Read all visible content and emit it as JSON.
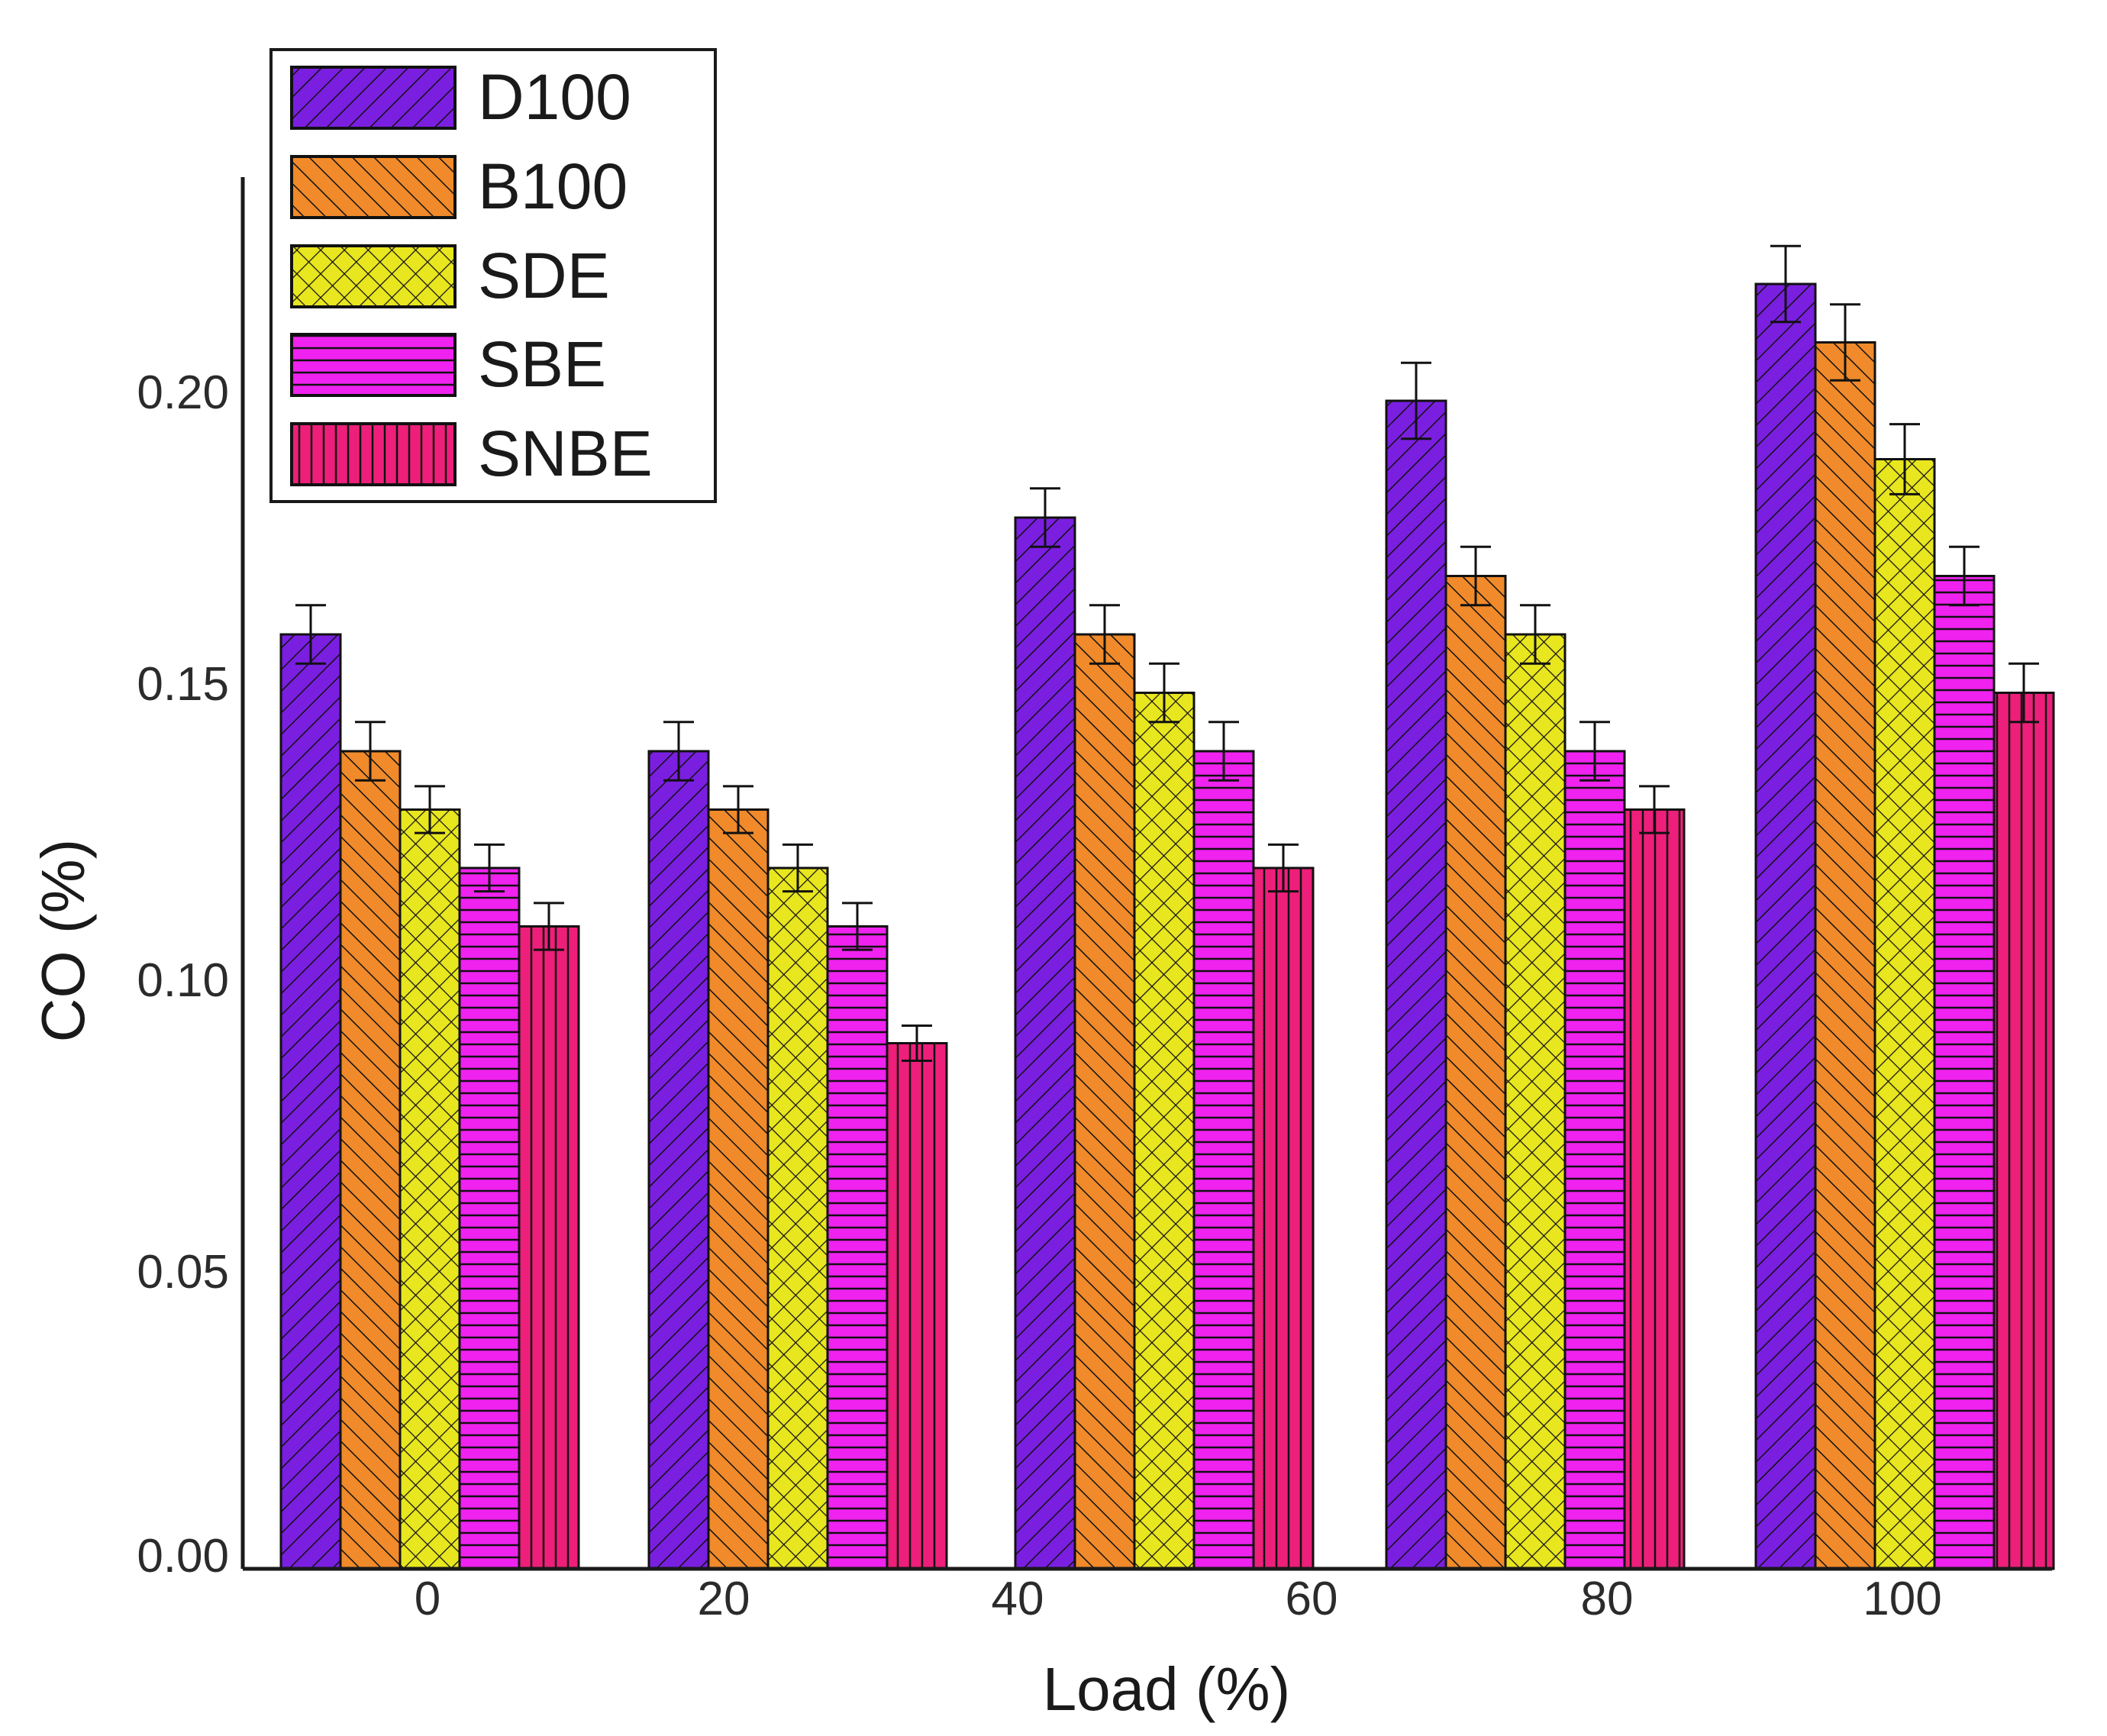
{
  "chart_data": {
    "type": "bar",
    "title": "",
    "xlabel": "Load (%)",
    "ylabel": "CO (%)",
    "ylim": [
      0,
      0.24
    ],
    "yticks": [
      "0.00",
      "0.05",
      "0.10",
      "0.15",
      "0.20"
    ],
    "xticks": [
      "0",
      "20",
      "40",
      "60",
      "80",
      "100"
    ],
    "groups": 5,
    "series": [
      {
        "name": "D100",
        "color": "#7a1fe0",
        "pattern": "diag-right",
        "values": [
          0.16,
          0.14,
          0.18,
          0.2,
          0.22
        ],
        "errors": [
          0.005,
          0.005,
          0.005,
          0.0065,
          0.0065
        ]
      },
      {
        "name": "B100",
        "color": "#f08a2a",
        "pattern": "diag-left",
        "values": [
          0.14,
          0.13,
          0.16,
          0.17,
          0.21
        ],
        "errors": [
          0.005,
          0.004,
          0.005,
          0.005,
          0.0065
        ]
      },
      {
        "name": "SDE",
        "color": "#e8e61e",
        "pattern": "crosshatch",
        "values": [
          0.13,
          0.12,
          0.15,
          0.16,
          0.19
        ],
        "errors": [
          0.004,
          0.004,
          0.005,
          0.005,
          0.006
        ]
      },
      {
        "name": "SBE",
        "color": "#ef22ef",
        "pattern": "horizontal",
        "values": [
          0.12,
          0.11,
          0.14,
          0.14,
          0.17
        ],
        "errors": [
          0.004,
          0.004,
          0.005,
          0.005,
          0.005
        ]
      },
      {
        "name": "SNBE",
        "color": "#ee1f7a",
        "pattern": "vertical",
        "values": [
          0.11,
          0.09,
          0.12,
          0.13,
          0.15
        ],
        "errors": [
          0.004,
          0.003,
          0.004,
          0.004,
          0.005
        ]
      }
    ],
    "legend_position": "top-left"
  }
}
